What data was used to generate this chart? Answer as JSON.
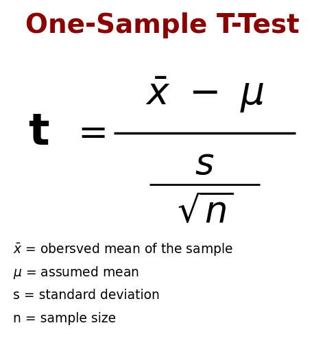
{
  "title": "One-Sample T-Test",
  "title_color": "#8B0000",
  "title_fontsize": 28,
  "title_fontweight": "bold",
  "background_color": "#ffffff",
  "formula_color": "#000000",
  "legend_color": "#000000",
  "legend_lines": [
    "$\\bar{x}$ = obersved mean of the sample",
    "$\\mu$ = assumed mean",
    "s = standard deviation",
    "n = sample size"
  ],
  "legend_fontsize": 13.5,
  "fig_width": 4.74,
  "fig_height": 5.03,
  "dpi": 100
}
